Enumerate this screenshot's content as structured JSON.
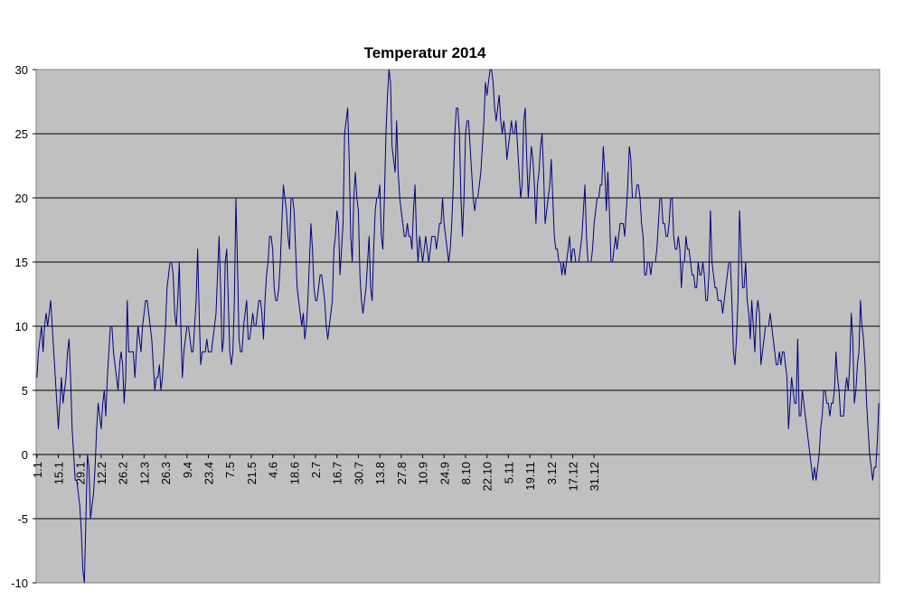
{
  "chart_data": {
    "type": "line",
    "title": "Temperatur 2014",
    "xlabel": "",
    "ylabel": "",
    "ylim": [
      -10,
      30
    ],
    "yticks": [
      -10,
      -5,
      0,
      5,
      10,
      15,
      20,
      25,
      30
    ],
    "grid": "horizontal",
    "legend": "none",
    "plot_background": "#C0C0C0",
    "line_color": "#000080",
    "x_tick_labels": [
      "1.1",
      "15.1",
      "29.1",
      "12.2",
      "26.2",
      "12.3",
      "26.3",
      "9.4",
      "23.4",
      "7.5",
      "21.5",
      "4.6",
      "18.6",
      "2.7",
      "16.7",
      "30.7",
      "13.8",
      "27.8",
      "10.9",
      "24.9",
      "8.10",
      "22.10",
      "5.11",
      "19.11",
      "3.12",
      "17.12",
      "31.12"
    ],
    "series": [
      {
        "values": [
          6,
          8,
          9,
          10,
          8,
          10,
          11,
          10,
          11,
          12,
          10,
          8,
          6,
          4,
          2,
          4,
          6,
          4,
          5,
          6,
          8,
          9,
          6,
          2,
          0,
          -2,
          -2,
          -3,
          -4,
          -6,
          -9,
          -10,
          -5,
          0,
          -1,
          -5,
          -4,
          -3,
          -1,
          2,
          4,
          3,
          2,
          4,
          5,
          3,
          6,
          8,
          10,
          10,
          8,
          7,
          6,
          5,
          7,
          8,
          7,
          4,
          6,
          12,
          8,
          8,
          8,
          8,
          6,
          8,
          10,
          9,
          8,
          10,
          11,
          12,
          12,
          11,
          10,
          9,
          7,
          5,
          6,
          6,
          7,
          5,
          6,
          8,
          10,
          13,
          14,
          15,
          15,
          14,
          11,
          10,
          12,
          15,
          10,
          6,
          8,
          9,
          10,
          10,
          9,
          8,
          8,
          10,
          12,
          16,
          11,
          7,
          8,
          8,
          8,
          9,
          8,
          8,
          8,
          9,
          10,
          11,
          14,
          17,
          13,
          8,
          9,
          15,
          16,
          12,
          8,
          7,
          8,
          12,
          20,
          15,
          9,
          8,
          8,
          10,
          11,
          12,
          9,
          9,
          10,
          11,
          10,
          10,
          11,
          12,
          12,
          11,
          9,
          12,
          14,
          15,
          17,
          17,
          16,
          13,
          12,
          12,
          13,
          15,
          18,
          21,
          20,
          19,
          17,
          16,
          20,
          20,
          19,
          16,
          13,
          12,
          11,
          10,
          11,
          9,
          10,
          12,
          15,
          18,
          16,
          13,
          12,
          12,
          13,
          14,
          14,
          13,
          12,
          10,
          9,
          10,
          11,
          12,
          16,
          17,
          19,
          18,
          14,
          16,
          18,
          25,
          26,
          27,
          23,
          17,
          15,
          20,
          22,
          20,
          19,
          14,
          12,
          11,
          12,
          13,
          15,
          17,
          13,
          12,
          16,
          19,
          20,
          20,
          21,
          17,
          16,
          20,
          25,
          28,
          30,
          29,
          24,
          23,
          22,
          26,
          22,
          20,
          19,
          18,
          17,
          17,
          18,
          17,
          17,
          16,
          19,
          21,
          17,
          15,
          17,
          16,
          15,
          16,
          17,
          16,
          15,
          16,
          17,
          17,
          17,
          16,
          17,
          18,
          18,
          20,
          18,
          17,
          16,
          15,
          16,
          18,
          21,
          25,
          27,
          27,
          25,
          20,
          17,
          20,
          25,
          26,
          26,
          24,
          22,
          20,
          19,
          20,
          20,
          21,
          22,
          24,
          26,
          29,
          28,
          29,
          30,
          30,
          29,
          27,
          26,
          27,
          28,
          26,
          25,
          26,
          25,
          23,
          24,
          25,
          26,
          25,
          25,
          26,
          24,
          22,
          20,
          21,
          26,
          27,
          23,
          20,
          22,
          24,
          23,
          21,
          18,
          21,
          22,
          24,
          25,
          22,
          18,
          19,
          20,
          21,
          23,
          20,
          17,
          16,
          16,
          15,
          15,
          14,
          15,
          14,
          15,
          16,
          17,
          15,
          16,
          16,
          15,
          15,
          15,
          16,
          17,
          19,
          21,
          17,
          15,
          15,
          15,
          16,
          18,
          19,
          20,
          20,
          21,
          21,
          24,
          22,
          19,
          22,
          19,
          15,
          15,
          16,
          17,
          16,
          17,
          18,
          18,
          18,
          17,
          19,
          21,
          24,
          23,
          20,
          20,
          20,
          21,
          21,
          20,
          18,
          17,
          14,
          14,
          15,
          15,
          14,
          15,
          15,
          15,
          16,
          18,
          20,
          20,
          18,
          18,
          17,
          17,
          18,
          20,
          20,
          17,
          16,
          16,
          17,
          16,
          13,
          15,
          15,
          17,
          16,
          16,
          15,
          14,
          14,
          13,
          13,
          15,
          14,
          14,
          15,
          14,
          12,
          12,
          14,
          19,
          15,
          14,
          13,
          13,
          12,
          12,
          12,
          11,
          12,
          13,
          14,
          15,
          15,
          12,
          8,
          7,
          9,
          12,
          19,
          16,
          13,
          13,
          15,
          12,
          11,
          9,
          12,
          10,
          8,
          11,
          12,
          11,
          7,
          8,
          9,
          10,
          10,
          10,
          11,
          10,
          9,
          8,
          7,
          7,
          8,
          7,
          8,
          8,
          7,
          6,
          2,
          4,
          6,
          5,
          4,
          4,
          9,
          3,
          3,
          5,
          4,
          3,
          2,
          1,
          0,
          -1,
          -2,
          -1,
          -2,
          -1,
          0,
          2,
          3,
          5,
          5,
          4,
          4,
          3,
          4,
          4,
          5,
          8,
          6,
          5,
          3,
          3,
          3,
          5,
          6,
          5,
          7,
          11,
          9,
          4,
          5,
          7,
          8,
          12,
          10,
          9,
          7,
          4,
          2,
          0,
          -1,
          -2,
          -1,
          -1,
          1,
          4
        ]
      }
    ]
  }
}
